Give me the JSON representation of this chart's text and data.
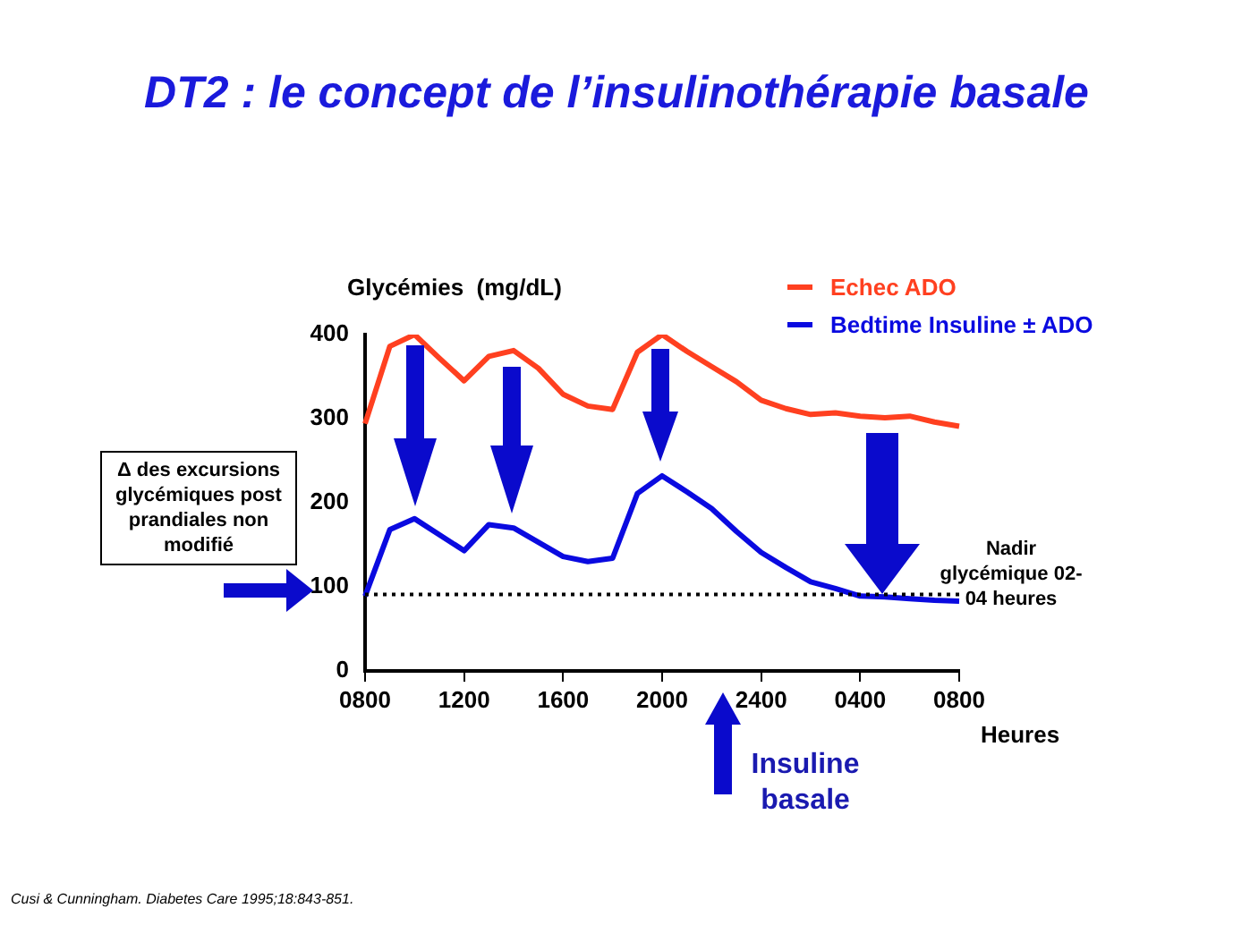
{
  "chart_data": {
    "type": "line",
    "title": "DT2 : le concept de l’insulinothérapie basale",
    "ylabel": "Glycémies  (mg/dL)",
    "xlabel": "Heures",
    "categories": [
      "0800",
      null,
      null,
      null,
      "1200",
      null,
      null,
      null,
      "1600",
      null,
      null,
      null,
      "2000",
      null,
      null,
      null,
      "2400",
      null,
      null,
      null,
      "0400",
      null,
      null,
      null,
      "0800"
    ],
    "ylim": [
      0,
      400
    ],
    "yticks": [
      0,
      100,
      200,
      300,
      400
    ],
    "grid": false,
    "legend": "top right",
    "marker": "none",
    "line_style": "solid",
    "series": [
      {
        "name": "Echec ADO",
        "color": "#ff4020",
        "values": [
          294,
          386,
          400,
          372,
          345,
          374,
          381,
          360,
          329,
          315,
          311,
          379,
          400,
          380,
          362,
          344,
          322,
          312,
          305,
          307,
          303,
          301,
          303,
          296,
          291
        ]
      },
      {
        "name": "Bedtime Insuline ± ADO",
        "color": "#0a0ae0",
        "values": [
          89,
          168,
          181,
          162,
          143,
          174,
          170,
          153,
          136,
          130,
          134,
          211,
          232,
          213,
          193,
          166,
          141,
          123,
          106,
          98,
          89,
          88,
          86,
          84,
          83
        ]
      }
    ],
    "ref_lines": [
      {
        "axis": "y",
        "value": 91,
        "line_style": "dotted",
        "color": "#000000"
      }
    ],
    "annotations": [
      "Δ des excursions glycémiques post prandiales non modifié",
      "Nadir glycémique  02-04 heures",
      "Insuline basale",
      "Cusi & Cunningham. Diabetes Care 1995;18:843-851."
    ]
  }
}
